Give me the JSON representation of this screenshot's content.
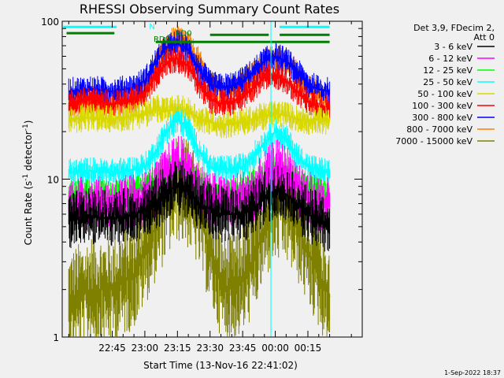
{
  "chart_data": {
    "type": "line",
    "title": "RHESSI Observing Summary Count Rates",
    "xlabel": "Start Time (13-Nov-16 22:41:02)",
    "ylabel": "Count Rate (s⁻¹ detector⁻¹)",
    "ylabel_main": "Count Rate (s",
    "ylabel_sup1": "-1",
    "ylabel_mid": " detector",
    "ylabel_sup2": "-1",
    "ylabel_end": ")",
    "y_scale": "log",
    "ylim": [
      1,
      100
    ],
    "y_ticks": [
      {
        "value": 1,
        "label": "1"
      },
      {
        "value": 10,
        "label": "10"
      },
      {
        "value": 100,
        "label": "100"
      }
    ],
    "xlim_minutes": [
      -38,
      100
    ],
    "x_ticks": [
      {
        "minute": -15,
        "label": "22:45"
      },
      {
        "minute": 0,
        "label": "23:00"
      },
      {
        "minute": 15,
        "label": "23:15"
      },
      {
        "minute": 30,
        "label": "23:30"
      },
      {
        "minute": 45,
        "label": "23:45"
      },
      {
        "minute": 60,
        "label": "00:00"
      },
      {
        "minute": 75,
        "label": "00:15"
      }
    ],
    "legend_header": [
      "Det 3,9, FDecim 2,",
      "Att 0"
    ],
    "legend_position": "right",
    "series": [
      {
        "name": "3 - 6 keV",
        "color": "#000000",
        "values": [
          [
            -35,
            5.5
          ],
          [
            -25,
            5.8
          ],
          [
            -15,
            5.6
          ],
          [
            -5,
            6
          ],
          [
            0,
            6.5
          ],
          [
            5,
            7
          ],
          [
            10,
            8.5
          ],
          [
            15,
            9
          ],
          [
            20,
            8.5
          ],
          [
            25,
            7
          ],
          [
            30,
            6.5
          ],
          [
            35,
            6
          ],
          [
            40,
            6
          ],
          [
            45,
            6
          ],
          [
            50,
            6.5
          ],
          [
            55,
            7.5
          ],
          [
            60,
            8.5
          ],
          [
            65,
            8
          ],
          [
            70,
            7
          ],
          [
            75,
            6
          ],
          [
            80,
            5.5
          ],
          [
            85,
            5
          ]
        ]
      },
      {
        "name": "6 - 12 keV",
        "color": "#ff00ff",
        "values": [
          [
            -35,
            6.8
          ],
          [
            -25,
            7
          ],
          [
            -15,
            6.8
          ],
          [
            -5,
            7.2
          ],
          [
            0,
            7.5
          ],
          [
            5,
            8.5
          ],
          [
            10,
            11
          ],
          [
            15,
            13
          ],
          [
            20,
            11.5
          ],
          [
            25,
            8.5
          ],
          [
            30,
            7.5
          ],
          [
            35,
            7
          ],
          [
            40,
            7.2
          ],
          [
            45,
            7.5
          ],
          [
            50,
            8
          ],
          [
            55,
            10
          ],
          [
            60,
            12
          ],
          [
            65,
            11
          ],
          [
            70,
            9
          ],
          [
            75,
            7.5
          ],
          [
            80,
            7
          ],
          [
            85,
            6.8
          ]
        ]
      },
      {
        "name": "12 - 25 keV",
        "color": "#00ff00",
        "values": [
          [
            -35,
            8
          ],
          [
            -25,
            8.2
          ],
          [
            -15,
            8
          ],
          [
            -5,
            8.5
          ],
          [
            0,
            8.8
          ],
          [
            5,
            10
          ],
          [
            10,
            11.5
          ],
          [
            15,
            12.5
          ],
          [
            20,
            11
          ],
          [
            25,
            9.5
          ],
          [
            30,
            8.5
          ],
          [
            35,
            8.3
          ],
          [
            40,
            8.4
          ],
          [
            45,
            8.6
          ],
          [
            50,
            9.5
          ],
          [
            55,
            10.5
          ],
          [
            60,
            11.5
          ],
          [
            65,
            11
          ],
          [
            70,
            10
          ],
          [
            75,
            8.8
          ],
          [
            80,
            8.4
          ],
          [
            85,
            8.1
          ]
        ]
      },
      {
        "name": "25 - 50 keV",
        "color": "#00ffff",
        "values": [
          [
            -35,
            11
          ],
          [
            -25,
            11.3
          ],
          [
            -15,
            11
          ],
          [
            -5,
            11.5
          ],
          [
            0,
            12
          ],
          [
            5,
            15
          ],
          [
            10,
            20
          ],
          [
            15,
            24
          ],
          [
            20,
            21
          ],
          [
            25,
            15
          ],
          [
            30,
            12
          ],
          [
            35,
            11.5
          ],
          [
            40,
            11.6
          ],
          [
            45,
            12
          ],
          [
            50,
            14
          ],
          [
            55,
            17
          ],
          [
            60,
            20
          ],
          [
            65,
            18
          ],
          [
            70,
            14
          ],
          [
            75,
            12
          ],
          [
            80,
            11.4
          ],
          [
            85,
            11
          ]
        ]
      },
      {
        "name": "50 - 100 keV",
        "color": "#d8d800",
        "values": [
          [
            -35,
            24
          ],
          [
            -25,
            24.5
          ],
          [
            -15,
            24
          ],
          [
            -5,
            25
          ],
          [
            0,
            26
          ],
          [
            5,
            28
          ],
          [
            10,
            27
          ],
          [
            15,
            28
          ],
          [
            20,
            27
          ],
          [
            25,
            24
          ],
          [
            30,
            23
          ],
          [
            35,
            22
          ],
          [
            40,
            22.5
          ],
          [
            45,
            23
          ],
          [
            50,
            24
          ],
          [
            55,
            25
          ],
          [
            60,
            26
          ],
          [
            65,
            25.5
          ],
          [
            70,
            24
          ],
          [
            75,
            23.5
          ],
          [
            80,
            24
          ],
          [
            85,
            23
          ]
        ]
      },
      {
        "name": "100 - 300 keV",
        "color": "#ff0000",
        "values": [
          [
            -35,
            30
          ],
          [
            -25,
            32
          ],
          [
            -15,
            30
          ],
          [
            -5,
            32
          ],
          [
            0,
            35
          ],
          [
            5,
            45
          ],
          [
            10,
            55
          ],
          [
            15,
            58
          ],
          [
            20,
            52
          ],
          [
            25,
            40
          ],
          [
            30,
            32
          ],
          [
            35,
            30
          ],
          [
            40,
            31
          ],
          [
            45,
            33
          ],
          [
            50,
            38
          ],
          [
            55,
            44
          ],
          [
            60,
            46
          ],
          [
            65,
            42
          ],
          [
            70,
            36
          ],
          [
            75,
            31
          ],
          [
            80,
            29
          ],
          [
            85,
            28
          ]
        ]
      },
      {
        "name": "300 - 800 keV",
        "color": "#0000ff",
        "values": [
          [
            -35,
            36
          ],
          [
            -25,
            37
          ],
          [
            -15,
            36
          ],
          [
            -5,
            38
          ],
          [
            0,
            42
          ],
          [
            5,
            55
          ],
          [
            10,
            68
          ],
          [
            15,
            72
          ],
          [
            20,
            66
          ],
          [
            25,
            50
          ],
          [
            30,
            40
          ],
          [
            35,
            38
          ],
          [
            40,
            39
          ],
          [
            45,
            42
          ],
          [
            50,
            48
          ],
          [
            55,
            56
          ],
          [
            60,
            60
          ],
          [
            65,
            56
          ],
          [
            70,
            48
          ],
          [
            75,
            40
          ],
          [
            80,
            37
          ],
          [
            85,
            36
          ]
        ]
      },
      {
        "name": "800 - 7000 keV",
        "color": "#ff8000",
        "values": [
          [
            -35,
            30
          ],
          [
            -25,
            31
          ],
          [
            -15,
            30
          ],
          [
            -5,
            32
          ],
          [
            0,
            36
          ],
          [
            5,
            52
          ],
          [
            10,
            70
          ],
          [
            15,
            78
          ],
          [
            20,
            72
          ],
          [
            25,
            55
          ],
          [
            30,
            40
          ],
          [
            35,
            36
          ],
          [
            40,
            37
          ],
          [
            45,
            40
          ],
          [
            50,
            47
          ],
          [
            55,
            55
          ],
          [
            60,
            58
          ],
          [
            65,
            55
          ],
          [
            70,
            46
          ],
          [
            75,
            38
          ],
          [
            80,
            34
          ],
          [
            85,
            31
          ]
        ]
      },
      {
        "name": "7000 - 15000 keV",
        "color": "#808000",
        "values": [
          [
            -35,
            1.6
          ],
          [
            -25,
            2
          ],
          [
            -15,
            2
          ],
          [
            -5,
            2.5
          ],
          [
            0,
            3.5
          ],
          [
            5,
            5
          ],
          [
            10,
            7
          ],
          [
            15,
            9
          ],
          [
            20,
            8
          ],
          [
            25,
            6
          ],
          [
            30,
            3.5
          ],
          [
            35,
            2.2
          ],
          [
            40,
            2
          ],
          [
            45,
            2.3
          ],
          [
            50,
            3
          ],
          [
            55,
            5
          ],
          [
            60,
            6.5
          ],
          [
            65,
            6.5
          ],
          [
            70,
            5
          ],
          [
            75,
            3.5
          ],
          [
            80,
            2.5
          ],
          [
            85,
            1.8
          ]
        ]
      }
    ],
    "annotations": [
      {
        "label": "N",
        "color": "#00ffff",
        "x_minute": 2,
        "y_value": 89
      },
      {
        "label": "RD0",
        "color": "#008000",
        "x_minute": 4,
        "y_value": 74
      },
      {
        "label": "RD0",
        "color": "#008000",
        "x_minute": 14,
        "y_value": 81
      }
    ],
    "cyan_bars": [
      {
        "x_from": -37.5,
        "x_to": -13,
        "y_value": 92
      },
      {
        "x_from": 62,
        "x_to": 85,
        "y_value": 92
      }
    ],
    "green_bars": [
      {
        "x_from": -36,
        "x_to": -14,
        "y_value": 84
      },
      {
        "x_from": 5,
        "x_to": 85,
        "y_value": 74
      },
      {
        "x_from": 30,
        "x_to": 57,
        "y_value": 82
      },
      {
        "x_from": 62,
        "x_to": 85,
        "y_value": 82
      }
    ],
    "vertical_markers": [
      {
        "x_minute": 58,
        "color": "#00ffff"
      }
    ]
  },
  "footer": "1-Sep-2022 18:37"
}
